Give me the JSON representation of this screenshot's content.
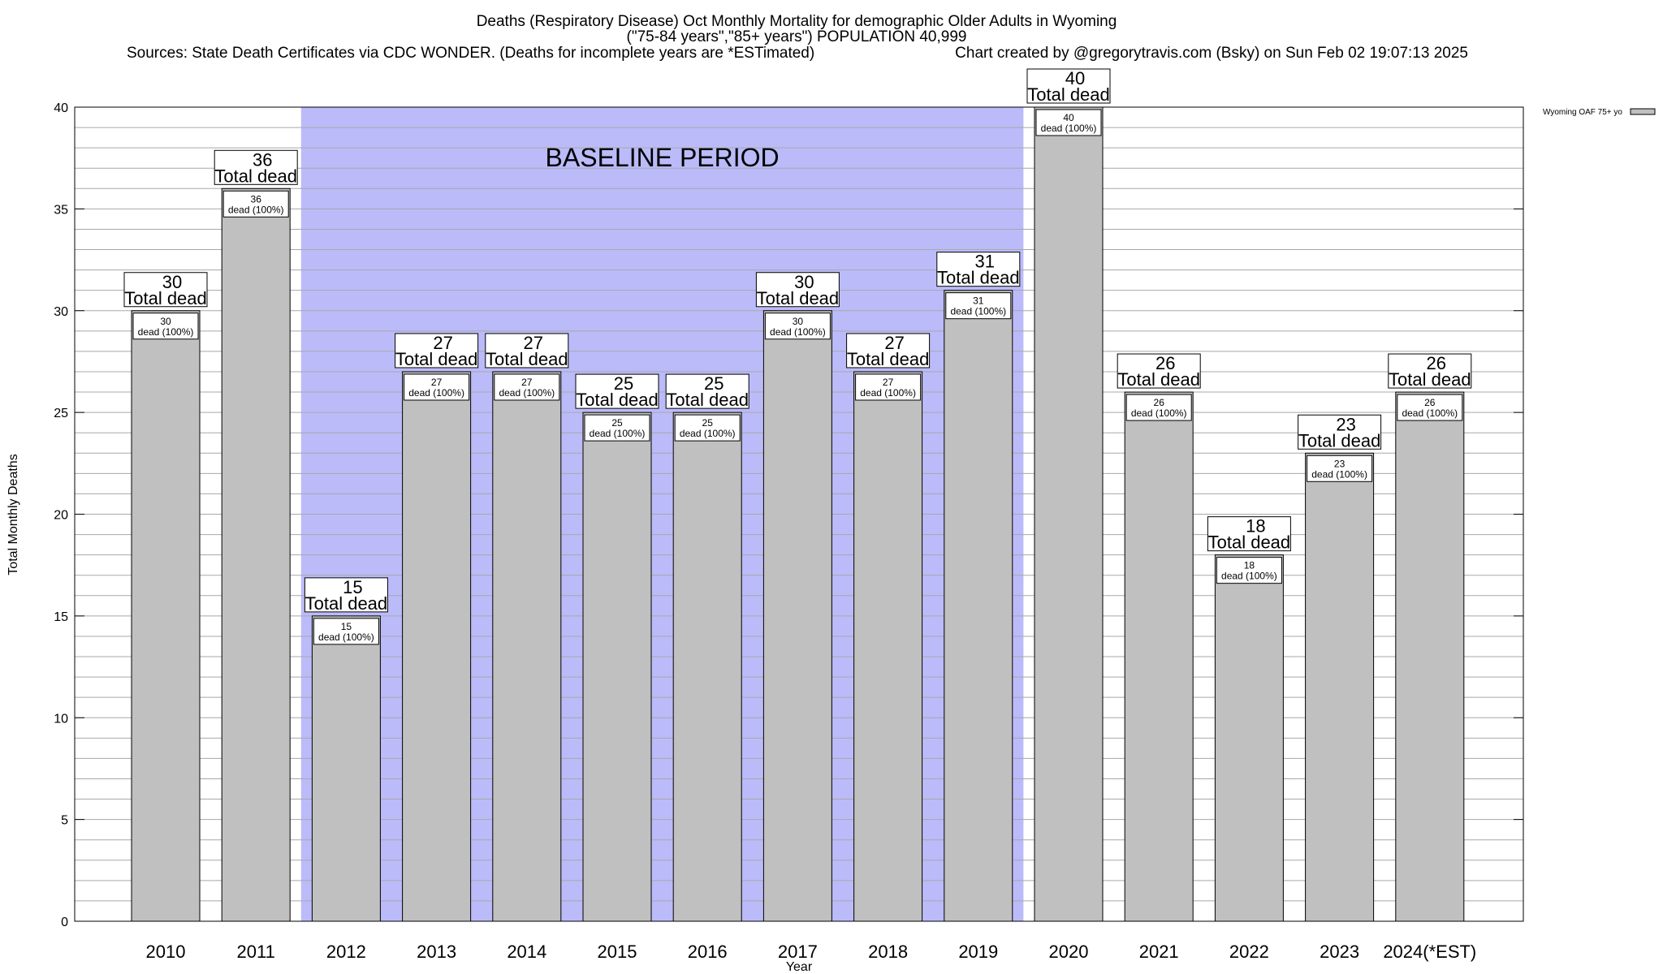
{
  "chart_data": {
    "type": "bar",
    "title_lines": [
      "Deaths (Respiratory Disease) Oct Monthly Mortality for demographic Older Adults in Wyoming",
      "(\"75-84 years\",\"85+ years\") POPULATION 40,999"
    ],
    "source_text": "Sources: State Death Certificates via CDC WONDER. (Deaths for incomplete years are *ESTimated)",
    "credit_text": "Chart created by @gregorytravis.com (Bsky) on Sun Feb 02 19:07:13 2025",
    "xlabel": "Year",
    "ylabel": "Total Monthly Deaths",
    "categories": [
      "2010",
      "2011",
      "2012",
      "2013",
      "2014",
      "2015",
      "2016",
      "2017",
      "2018",
      "2019",
      "2020",
      "2021",
      "2022",
      "2023",
      "2024(*EST)"
    ],
    "series": [
      {
        "name": "Wyoming OAF 75+ yo",
        "values": [
          30,
          36,
          15,
          27,
          27,
          25,
          25,
          30,
          27,
          31,
          40,
          26,
          18,
          23,
          26
        ],
        "color": "#c0c0c0"
      }
    ],
    "bar_top_label_suffix": "Total dead",
    "bar_inner_label_suffix": "dead (100%)",
    "ylim": [
      0,
      40
    ],
    "yticks": [
      0,
      5,
      10,
      15,
      20,
      25,
      30,
      35,
      40
    ],
    "minor_grid_step": 1,
    "grid": true,
    "baseline_period": {
      "label": "BASELINE PERIOD",
      "from_category": "2012",
      "to_category": "2019",
      "color": "#bbbbfa"
    },
    "legend": {
      "placement": "top-right"
    }
  }
}
